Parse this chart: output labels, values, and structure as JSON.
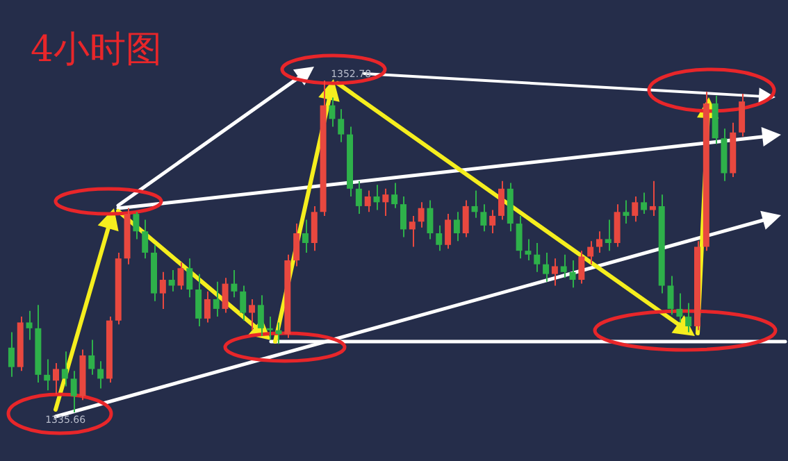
{
  "chart_data": {
    "type": "candlestick",
    "title": "4小时图",
    "categories": [
      null,
      null,
      null,
      null,
      null,
      null,
      null,
      null,
      null,
      null,
      null,
      null,
      null,
      null,
      null,
      null,
      null,
      null,
      null,
      null,
      null,
      null,
      null,
      null,
      null,
      null,
      null,
      null,
      null,
      null,
      null,
      null,
      null,
      null,
      null,
      null,
      null,
      null,
      null,
      null,
      null,
      null,
      null,
      null,
      null,
      null,
      null,
      null,
      null,
      null,
      null,
      null,
      null,
      null,
      null,
      null,
      null,
      null,
      null,
      null,
      null,
      null,
      null,
      null,
      null,
      null,
      null,
      null,
      null,
      null,
      null,
      null,
      null,
      null,
      null,
      null,
      null,
      null,
      null,
      null,
      null,
      null,
      null
    ],
    "ohlc": [
      [
        1339.0,
        1339.8,
        1337.5,
        1338.0
      ],
      [
        1338.0,
        1340.6,
        1337.8,
        1340.3
      ],
      [
        1340.3,
        1340.9,
        1339.4,
        1340.0
      ],
      [
        1340.0,
        1341.2,
        1337.2,
        1337.6
      ],
      [
        1337.6,
        1338.4,
        1336.8,
        1337.3
      ],
      [
        1337.3,
        1338.2,
        1336.6,
        1337.9
      ],
      [
        1337.9,
        1338.8,
        1337.0,
        1337.4
      ],
      [
        1337.4,
        1337.8,
        1335.66,
        1336.5
      ],
      [
        1336.5,
        1338.9,
        1336.3,
        1338.6
      ],
      [
        1338.6,
        1339.4,
        1337.6,
        1337.9
      ],
      [
        1337.9,
        1338.3,
        1336.9,
        1337.4
      ],
      [
        1337.4,
        1340.6,
        1337.2,
        1340.4
      ],
      [
        1340.4,
        1343.9,
        1340.2,
        1343.6
      ],
      [
        1343.6,
        1346.2,
        1343.3,
        1345.9
      ],
      [
        1345.9,
        1346.0,
        1344.6,
        1345.0
      ],
      [
        1345.0,
        1345.6,
        1343.6,
        1343.9
      ],
      [
        1343.9,
        1344.3,
        1341.4,
        1341.8
      ],
      [
        1341.8,
        1342.9,
        1341.0,
        1342.5
      ],
      [
        1342.5,
        1343.0,
        1341.9,
        1342.2
      ],
      [
        1342.2,
        1343.4,
        1342.0,
        1343.1
      ],
      [
        1343.1,
        1343.6,
        1341.6,
        1342.0
      ],
      [
        1342.0,
        1342.8,
        1340.1,
        1340.5
      ],
      [
        1340.5,
        1341.9,
        1340.3,
        1341.5
      ],
      [
        1341.5,
        1342.4,
        1340.6,
        1341.0
      ],
      [
        1341.0,
        1342.6,
        1340.8,
        1342.3
      ],
      [
        1342.3,
        1343.0,
        1341.6,
        1341.9
      ],
      [
        1341.9,
        1342.2,
        1340.4,
        1340.8
      ],
      [
        1340.8,
        1341.5,
        1339.9,
        1341.2
      ],
      [
        1341.2,
        1341.7,
        1339.6,
        1340.0
      ],
      [
        1340.0,
        1340.6,
        1339.4,
        1339.9
      ],
      [
        1339.9,
        1340.3,
        1339.2,
        1339.7
      ],
      [
        1339.7,
        1343.8,
        1339.5,
        1343.5
      ],
      [
        1343.5,
        1345.4,
        1343.2,
        1344.9
      ],
      [
        1344.9,
        1345.6,
        1343.9,
        1344.4
      ],
      [
        1344.4,
        1346.3,
        1344.0,
        1346.0
      ],
      [
        1346.0,
        1352.78,
        1345.8,
        1351.5
      ],
      [
        1351.5,
        1351.9,
        1350.4,
        1350.8
      ],
      [
        1350.8,
        1351.3,
        1349.6,
        1350.0
      ],
      [
        1350.0,
        1350.4,
        1346.8,
        1347.2
      ],
      [
        1347.2,
        1347.6,
        1345.9,
        1346.3
      ],
      [
        1346.3,
        1347.1,
        1346.0,
        1346.8
      ],
      [
        1346.8,
        1347.4,
        1346.1,
        1346.5
      ],
      [
        1346.5,
        1347.2,
        1345.8,
        1346.9
      ],
      [
        1346.9,
        1347.5,
        1346.2,
        1346.4
      ],
      [
        1346.4,
        1346.8,
        1344.7,
        1345.1
      ],
      [
        1345.1,
        1345.8,
        1344.2,
        1345.5
      ],
      [
        1345.5,
        1346.5,
        1345.2,
        1346.2
      ],
      [
        1346.2,
        1346.6,
        1344.6,
        1344.9
      ],
      [
        1344.9,
        1345.3,
        1344.0,
        1344.3
      ],
      [
        1344.3,
        1345.9,
        1344.1,
        1345.6
      ],
      [
        1345.6,
        1346.0,
        1344.5,
        1344.9
      ],
      [
        1344.9,
        1346.6,
        1344.7,
        1346.3
      ],
      [
        1346.3,
        1347.1,
        1345.7,
        1346.0
      ],
      [
        1346.0,
        1346.4,
        1345.0,
        1345.3
      ],
      [
        1345.3,
        1346.1,
        1344.9,
        1345.8
      ],
      [
        1345.8,
        1347.6,
        1345.6,
        1347.2
      ],
      [
        1347.2,
        1347.5,
        1345.0,
        1345.4
      ],
      [
        1345.4,
        1345.8,
        1343.6,
        1344.0
      ],
      [
        1344.0,
        1344.6,
        1343.5,
        1343.8
      ],
      [
        1343.8,
        1344.4,
        1342.9,
        1343.3
      ],
      [
        1343.3,
        1343.9,
        1342.4,
        1342.8
      ],
      [
        1342.8,
        1343.6,
        1342.2,
        1343.2
      ],
      [
        1343.2,
        1343.8,
        1342.6,
        1342.9
      ],
      [
        1342.9,
        1343.5,
        1342.1,
        1342.5
      ],
      [
        1342.5,
        1344.0,
        1342.3,
        1343.7
      ],
      [
        1343.7,
        1344.5,
        1343.3,
        1344.2
      ],
      [
        1344.2,
        1345.0,
        1343.9,
        1344.6
      ],
      [
        1344.6,
        1345.6,
        1344.0,
        1344.4
      ],
      [
        1344.4,
        1346.4,
        1344.2,
        1346.0
      ],
      [
        1346.0,
        1346.6,
        1345.4,
        1345.8
      ],
      [
        1345.8,
        1346.8,
        1345.5,
        1346.5
      ],
      [
        1346.5,
        1347.0,
        1345.9,
        1346.1
      ],
      [
        1346.1,
        1347.6,
        1345.8,
        1346.3
      ],
      [
        1346.3,
        1346.9,
        1341.8,
        1342.2
      ],
      [
        1342.2,
        1342.7,
        1340.7,
        1341.0
      ],
      [
        1341.0,
        1341.8,
        1340.3,
        1340.6
      ],
      [
        1340.6,
        1341.3,
        1339.8,
        1340.1
      ],
      [
        1340.1,
        1344.5,
        1339.9,
        1344.2
      ],
      [
        1344.2,
        1352.2,
        1344.0,
        1351.6
      ],
      [
        1351.6,
        1352.0,
        1349.5,
        1349.8
      ],
      [
        1349.8,
        1350.3,
        1347.6,
        1348.0
      ],
      [
        1348.0,
        1350.6,
        1347.8,
        1350.1
      ],
      [
        1350.1,
        1352.1,
        1349.9,
        1351.7
      ]
    ],
    "annotations": [
      "1335.66",
      "1352.78"
    ]
  }
}
